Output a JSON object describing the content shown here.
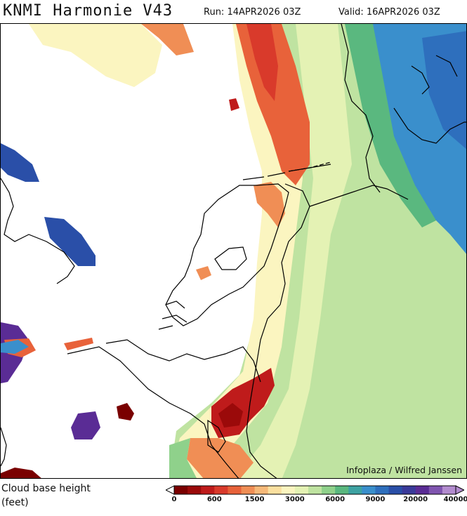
{
  "header": {
    "title": "KNMI Harmonie V43",
    "run": "Run: 14APR2026 03Z",
    "valid": "Valid: 16APR2026 03Z"
  },
  "map": {
    "credit": "Infoplaza / Wilfred Janssen",
    "region": "Netherlands / North Sea"
  },
  "legend": {
    "title_line1": "Cloud base height",
    "title_line2": "(feet)",
    "tick_labels": [
      "0",
      "600",
      "1500",
      "3000",
      "6000",
      "9000",
      "20000",
      "40000"
    ],
    "colors": [
      "#7a0000",
      "#9b0a0a",
      "#bf1b1b",
      "#d93a2b",
      "#e8623a",
      "#f08e55",
      "#f6b979",
      "#fbe0a0",
      "#fbf5c0",
      "#e4f2b4",
      "#bfe3a1",
      "#8fd18b",
      "#5ab87f",
      "#3ea3a3",
      "#3a8fcc",
      "#2e6fbd",
      "#2a4fa8",
      "#3a3a9a",
      "#5a2c95",
      "#8055b0",
      "#b38ccf"
    ]
  }
}
